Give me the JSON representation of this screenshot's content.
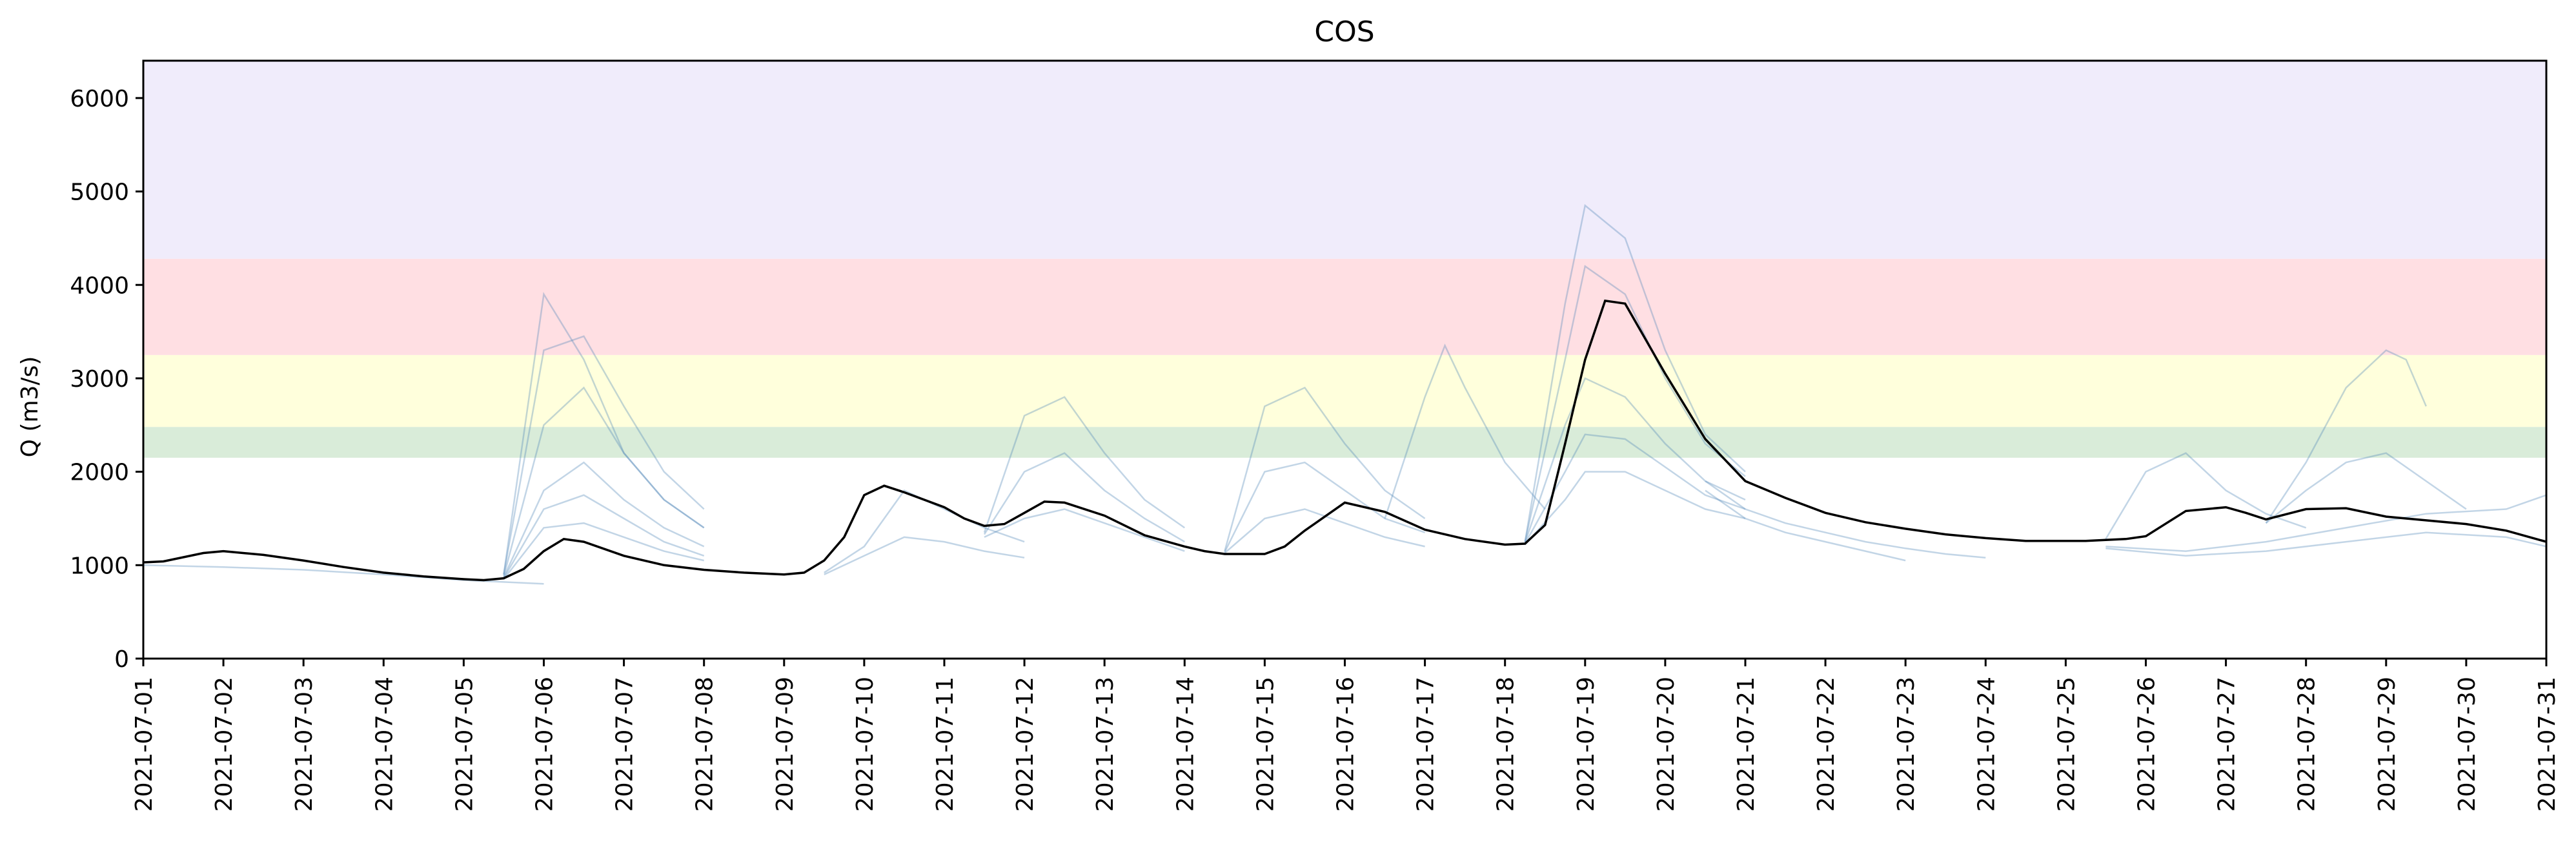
{
  "chart_data": {
    "type": "line",
    "title": "COS",
    "xlabel": "",
    "ylabel": "Q (m3/s)",
    "xlim": [
      "2021-07-01",
      "2021-07-31"
    ],
    "ylim": [
      0,
      6400
    ],
    "yticks": [
      0,
      1000,
      2000,
      3000,
      4000,
      5000,
      6000
    ],
    "ytick_labels": [
      "0",
      "1000",
      "2000",
      "3000",
      "4000",
      "5000",
      "6000"
    ],
    "xtick_labels": [
      "2021-07-01",
      "2021-07-02",
      "2021-07-03",
      "2021-07-04",
      "2021-07-05",
      "2021-07-06",
      "2021-07-07",
      "2021-07-08",
      "2021-07-09",
      "2021-07-10",
      "2021-07-11",
      "2021-07-12",
      "2021-07-13",
      "2021-07-14",
      "2021-07-15",
      "2021-07-16",
      "2021-07-17",
      "2021-07-18",
      "2021-07-19",
      "2021-07-20",
      "2021-07-21",
      "2021-07-22",
      "2021-07-23",
      "2021-07-24",
      "2021-07-25",
      "2021-07-26",
      "2021-07-27",
      "2021-07-28",
      "2021-07-29",
      "2021-07-30",
      "2021-07-31"
    ],
    "grid": false,
    "bands": [
      {
        "from": 2150,
        "to": 2480,
        "color": "#d9ecd9"
      },
      {
        "from": 2480,
        "to": 3250,
        "color": "#ffffdc"
      },
      {
        "from": 3250,
        "to": 4280,
        "color": "#ffdfe3"
      },
      {
        "from": 4280,
        "to": 6400,
        "color": "#f0ecfb"
      }
    ],
    "observed": {
      "color": "#000000",
      "x": [
        "2021-07-01 00:00",
        "2021-07-01 06:00",
        "2021-07-01 18:00",
        "2021-07-02 00:00",
        "2021-07-02 12:00",
        "2021-07-03 00:00",
        "2021-07-03 12:00",
        "2021-07-04 00:00",
        "2021-07-04 12:00",
        "2021-07-05 00:00",
        "2021-07-05 06:00",
        "2021-07-05 12:00",
        "2021-07-05 18:00",
        "2021-07-06 00:00",
        "2021-07-06 06:00",
        "2021-07-06 12:00",
        "2021-07-07 00:00",
        "2021-07-07 12:00",
        "2021-07-08 00:00",
        "2021-07-08 12:00",
        "2021-07-09 00:00",
        "2021-07-09 06:00",
        "2021-07-09 12:00",
        "2021-07-09 18:00",
        "2021-07-10 00:00",
        "2021-07-10 06:00",
        "2021-07-10 12:00",
        "2021-07-11 00:00",
        "2021-07-11 06:00",
        "2021-07-11 12:00",
        "2021-07-11 18:00",
        "2021-07-12 00:00",
        "2021-07-12 06:00",
        "2021-07-12 12:00",
        "2021-07-13 00:00",
        "2021-07-13 12:00",
        "2021-07-14 00:00",
        "2021-07-14 06:00",
        "2021-07-14 12:00",
        "2021-07-15 00:00",
        "2021-07-15 06:00",
        "2021-07-15 12:00",
        "2021-07-16 00:00",
        "2021-07-16 12:00",
        "2021-07-17 00:00",
        "2021-07-17 12:00",
        "2021-07-18 00:00",
        "2021-07-18 06:00",
        "2021-07-18 12:00",
        "2021-07-18 18:00",
        "2021-07-19 00:00",
        "2021-07-19 06:00",
        "2021-07-19 12:00",
        "2021-07-20 00:00",
        "2021-07-20 12:00",
        "2021-07-21 00:00",
        "2021-07-21 12:00",
        "2021-07-22 00:00",
        "2021-07-22 12:00",
        "2021-07-23 00:00",
        "2021-07-23 12:00",
        "2021-07-24 00:00",
        "2021-07-24 12:00",
        "2021-07-25 00:00",
        "2021-07-25 06:00",
        "2021-07-25 12:00",
        "2021-07-25 18:00",
        "2021-07-26 00:00",
        "2021-07-26 12:00",
        "2021-07-27 00:00",
        "2021-07-27 06:00",
        "2021-07-27 12:00",
        "2021-07-28 00:00",
        "2021-07-28 12:00",
        "2021-07-29 00:00",
        "2021-07-29 12:00",
        "2021-07-30 00:00",
        "2021-07-30 12:00",
        "2021-07-31 00:00"
      ],
      "y": [
        1030,
        1040,
        1130,
        1150,
        1110,
        1050,
        980,
        920,
        880,
        850,
        840,
        860,
        960,
        1150,
        1280,
        1250,
        1100,
        1000,
        950,
        920,
        900,
        920,
        1050,
        1300,
        1750,
        1850,
        1780,
        1620,
        1500,
        1420,
        1440,
        1560,
        1680,
        1670,
        1530,
        1320,
        1200,
        1150,
        1120,
        1120,
        1200,
        1370,
        1670,
        1570,
        1380,
        1280,
        1220,
        1230,
        1430,
        2300,
        3200,
        3830,
        3800,
        3050,
        2350,
        1900,
        1720,
        1560,
        1460,
        1390,
        1330,
        1290,
        1260,
        1260,
        1260,
        1270,
        1280,
        1310,
        1580,
        1620,
        1560,
        1490,
        1600,
        1610,
        1520,
        1480,
        1440,
        1370,
        1250
      ]
    },
    "ensemble": [
      {
        "x": [
          "2021-07-05 12:00",
          "2021-07-06 00:00",
          "2021-07-06 12:00",
          "2021-07-07 00:00",
          "2021-07-07 12:00",
          "2021-07-08 00:00"
        ],
        "y": [
          900,
          3900,
          3200,
          2200,
          1700,
          1400
        ]
      },
      {
        "x": [
          "2021-07-05 12:00",
          "2021-07-06 00:00",
          "2021-07-06 12:00",
          "2021-07-07 00:00",
          "2021-07-07 12:00",
          "2021-07-08 00:00"
        ],
        "y": [
          900,
          3300,
          3450,
          2700,
          2000,
          1600
        ]
      },
      {
        "x": [
          "2021-07-05 12:00",
          "2021-07-06 00:00",
          "2021-07-06 12:00",
          "2021-07-07 00:00",
          "2021-07-07 12:00",
          "2021-07-08 00:00"
        ],
        "y": [
          880,
          2500,
          2900,
          2200,
          1700,
          1400
        ]
      },
      {
        "x": [
          "2021-07-05 12:00",
          "2021-07-06 00:00",
          "2021-07-06 12:00",
          "2021-07-07 00:00",
          "2021-07-07 12:00",
          "2021-07-08 00:00"
        ],
        "y": [
          870,
          1800,
          2100,
          1700,
          1400,
          1200
        ]
      },
      {
        "x": [
          "2021-07-05 12:00",
          "2021-07-06 00:00",
          "2021-07-06 12:00",
          "2021-07-07 00:00",
          "2021-07-07 12:00",
          "2021-07-08 00:00"
        ],
        "y": [
          860,
          1600,
          1750,
          1500,
          1250,
          1100
        ]
      },
      {
        "x": [
          "2021-07-05 12:00",
          "2021-07-06 00:00",
          "2021-07-06 12:00",
          "2021-07-07 00:00",
          "2021-07-07 12:00",
          "2021-07-08 00:00"
        ],
        "y": [
          850,
          1400,
          1450,
          1300,
          1150,
          1050
        ]
      },
      {
        "x": [
          "2021-07-01 00:00",
          "2021-07-02 00:00",
          "2021-07-03 00:00",
          "2021-07-04 00:00",
          "2021-07-05 00:00",
          "2021-07-06 00:00"
        ],
        "y": [
          1000,
          980,
          950,
          900,
          840,
          800
        ]
      },
      {
        "x": [
          "2021-07-09 12:00",
          "2021-07-10 00:00",
          "2021-07-10 12:00",
          "2021-07-11 00:00",
          "2021-07-11 12:00",
          "2021-07-12 00:00"
        ],
        "y": [
          920,
          1200,
          1800,
          1600,
          1400,
          1250
        ]
      },
      {
        "x": [
          "2021-07-09 12:00",
          "2021-07-10 00:00",
          "2021-07-10 12:00",
          "2021-07-11 00:00",
          "2021-07-11 12:00",
          "2021-07-12 00:00"
        ],
        "y": [
          900,
          1100,
          1300,
          1250,
          1150,
          1080
        ]
      },
      {
        "x": [
          "2021-07-11 12:00",
          "2021-07-12 00:00",
          "2021-07-12 12:00",
          "2021-07-13 00:00",
          "2021-07-13 12:00",
          "2021-07-14 00:00"
        ],
        "y": [
          1350,
          2600,
          2800,
          2200,
          1700,
          1400
        ]
      },
      {
        "x": [
          "2021-07-11 12:00",
          "2021-07-12 00:00",
          "2021-07-12 12:00",
          "2021-07-13 00:00",
          "2021-07-13 12:00",
          "2021-07-14 00:00"
        ],
        "y": [
          1330,
          2000,
          2200,
          1800,
          1500,
          1250
        ]
      },
      {
        "x": [
          "2021-07-11 12:00",
          "2021-07-12 00:00",
          "2021-07-12 12:00",
          "2021-07-13 00:00",
          "2021-07-13 12:00",
          "2021-07-14 00:00"
        ],
        "y": [
          1300,
          1500,
          1600,
          1450,
          1300,
          1150
        ]
      },
      {
        "x": [
          "2021-07-14 12:00",
          "2021-07-15 00:00",
          "2021-07-15 12:00",
          "2021-07-16 00:00",
          "2021-07-16 12:00",
          "2021-07-17 00:00"
        ],
        "y": [
          1150,
          2700,
          2900,
          2300,
          1800,
          1500
        ]
      },
      {
        "x": [
          "2021-07-14 12:00",
          "2021-07-15 00:00",
          "2021-07-15 12:00",
          "2021-07-16 00:00",
          "2021-07-16 12:00",
          "2021-07-17 00:00"
        ],
        "y": [
          1140,
          2000,
          2100,
          1800,
          1500,
          1350
        ]
      },
      {
        "x": [
          "2021-07-14 12:00",
          "2021-07-15 00:00",
          "2021-07-15 12:00",
          "2021-07-16 00:00",
          "2021-07-16 12:00",
          "2021-07-17 00:00"
        ],
        "y": [
          1130,
          1500,
          1600,
          1450,
          1300,
          1200
        ]
      },
      {
        "x": [
          "2021-07-16 12:00",
          "2021-07-17 00:00",
          "2021-07-17 06:00",
          "2021-07-17 12:00",
          "2021-07-18 00:00",
          "2021-07-18 12:00"
        ],
        "y": [
          1500,
          2800,
          3350,
          2900,
          2100,
          1600
        ]
      },
      {
        "x": [
          "2021-07-18 06:00",
          "2021-07-18 18:00",
          "2021-07-19 00:00",
          "2021-07-19 12:00",
          "2021-07-20 00:00",
          "2021-07-20 12:00",
          "2021-07-21 00:00"
        ],
        "y": [
          1250,
          3800,
          4850,
          4500,
          3300,
          2400,
          2000
        ]
      },
      {
        "x": [
          "2021-07-18 06:00",
          "2021-07-18 18:00",
          "2021-07-19 00:00",
          "2021-07-19 12:00",
          "2021-07-20 00:00",
          "2021-07-20 12:00",
          "2021-07-21 00:00"
        ],
        "y": [
          1250,
          3200,
          4200,
          3900,
          3000,
          2300,
          1950
        ]
      },
      {
        "x": [
          "2021-07-18 06:00",
          "2021-07-18 18:00",
          "2021-07-19 00:00",
          "2021-07-19 12:00",
          "2021-07-20 00:00",
          "2021-07-20 12:00",
          "2021-07-21 00:00"
        ],
        "y": [
          1240,
          2500,
          3000,
          2800,
          2300,
          1900,
          1700
        ]
      },
      {
        "x": [
          "2021-07-18 06:00",
          "2021-07-18 18:00",
          "2021-07-19 00:00",
          "2021-07-19 12:00",
          "2021-07-20 00:00",
          "2021-07-20 12:00",
          "2021-07-21 00:00"
        ],
        "y": [
          1230,
          2000,
          2400,
          2350,
          2050,
          1750,
          1600
        ]
      },
      {
        "x": [
          "2021-07-18 06:00",
          "2021-07-18 18:00",
          "2021-07-19 00:00",
          "2021-07-19 12:00",
          "2021-07-20 00:00",
          "2021-07-20 12:00",
          "2021-07-21 00:00"
        ],
        "y": [
          1220,
          1700,
          2000,
          2000,
          1800,
          1600,
          1500
        ]
      },
      {
        "x": [
          "2021-07-20 12:00",
          "2021-07-21 00:00",
          "2021-07-21 12:00",
          "2021-07-22 00:00",
          "2021-07-22 12:00",
          "2021-07-23 00:00",
          "2021-07-23 12:00",
          "2021-07-24 00:00"
        ],
        "y": [
          1900,
          1600,
          1450,
          1350,
          1250,
          1180,
          1120,
          1080
        ]
      },
      {
        "x": [
          "2021-07-20 12:00",
          "2021-07-21 00:00",
          "2021-07-21 12:00",
          "2021-07-22 00:00",
          "2021-07-22 12:00",
          "2021-07-23 00:00"
        ],
        "y": [
          1800,
          1500,
          1350,
          1250,
          1150,
          1050
        ]
      },
      {
        "x": [
          "2021-07-25 12:00",
          "2021-07-26 00:00",
          "2021-07-26 12:00",
          "2021-07-27 00:00",
          "2021-07-27 12:00",
          "2021-07-28 00:00"
        ],
        "y": [
          1280,
          2000,
          2200,
          1800,
          1550,
          1400
        ]
      },
      {
        "x": [
          "2021-07-27 12:00",
          "2021-07-28 00:00",
          "2021-07-28 12:00",
          "2021-07-29 00:00",
          "2021-07-29 06:00",
          "2021-07-29 12:00"
        ],
        "y": [
          1450,
          2100,
          2900,
          3300,
          3200,
          2700
        ]
      },
      {
        "x": [
          "2021-07-27 12:00",
          "2021-07-28 00:00",
          "2021-07-28 12:00",
          "2021-07-29 00:00",
          "2021-07-29 12:00",
          "2021-07-30 00:00"
        ],
        "y": [
          1450,
          1800,
          2100,
          2200,
          1900,
          1600
        ]
      },
      {
        "x": [
          "2021-07-25 12:00",
          "2021-07-26 12:00",
          "2021-07-27 12:00",
          "2021-07-28 12:00",
          "2021-07-29 12:00",
          "2021-07-30 12:00",
          "2021-07-31 00:00"
        ],
        "y": [
          1200,
          1150,
          1250,
          1400,
          1550,
          1600,
          1750
        ]
      },
      {
        "x": [
          "2021-07-25 12:00",
          "2021-07-26 12:00",
          "2021-07-27 12:00",
          "2021-07-28 12:00",
          "2021-07-29 12:00",
          "2021-07-30 12:00",
          "2021-07-31 00:00"
        ],
        "y": [
          1180,
          1100,
          1150,
          1250,
          1350,
          1300,
          1200
        ]
      }
    ]
  }
}
